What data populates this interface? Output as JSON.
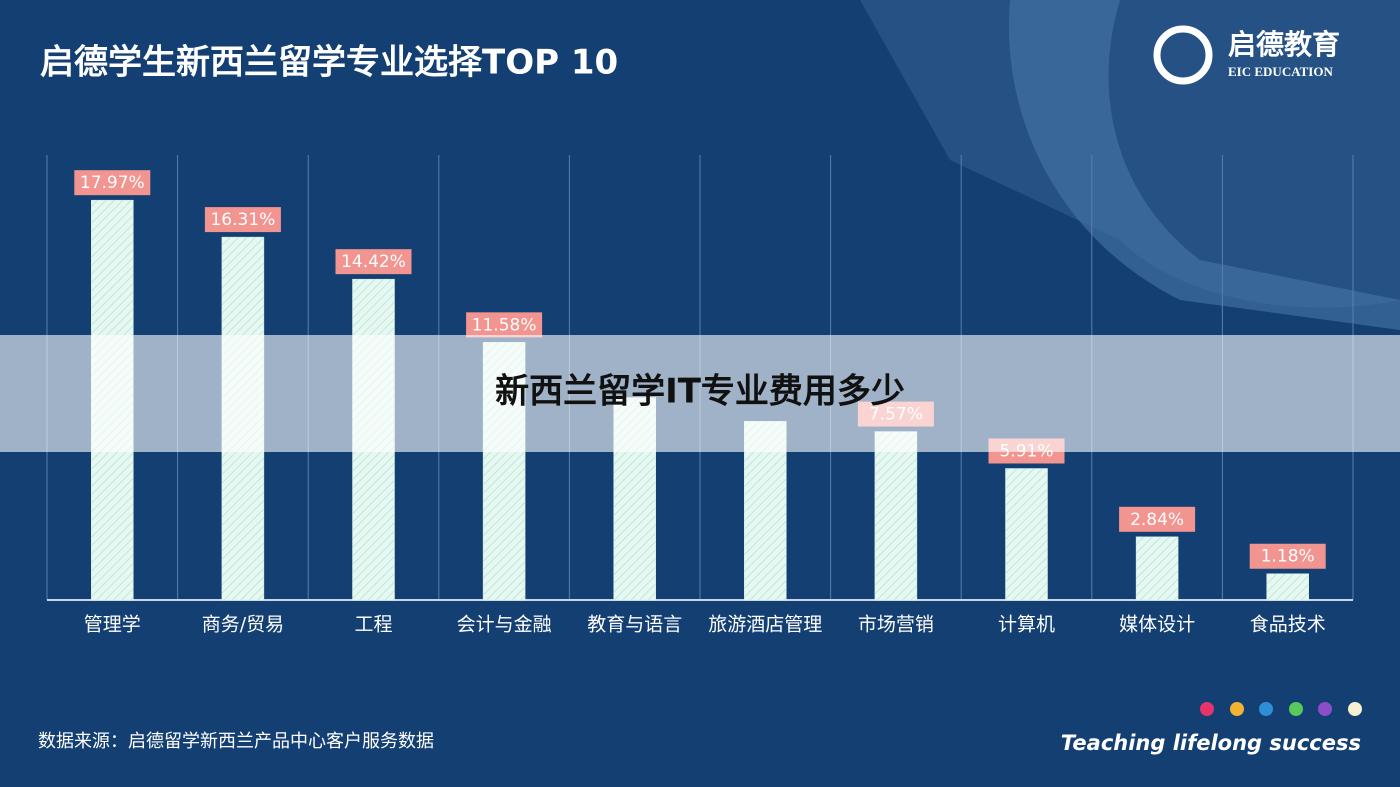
{
  "chart_data": {
    "type": "bar",
    "title": "启德学生新西兰留学专业选择TOP 10",
    "categories": [
      "管理学",
      "商务/贸易",
      "工程",
      "会计与金融",
      "教育与语言",
      "旅游酒店管理",
      "市场营销",
      "计算机",
      "媒体设计",
      "食品技术"
    ],
    "values": [
      17.97,
      16.31,
      14.42,
      11.58,
      9.1,
      8.03,
      7.57,
      5.91,
      2.84,
      1.18
    ],
    "value_labels": [
      "17.97%",
      "16.31%",
      "14.42%",
      "11.58%",
      null,
      null,
      "7.57%",
      "5.91%",
      "2.84%",
      "1.18%"
    ],
    "color": "#d9f5ea",
    "label_color": "#f2948f",
    "ylim": [
      0,
      20
    ]
  },
  "logo": {
    "name": "启德教育",
    "subtitle": "EIC EDUCATION"
  },
  "source": "数据来源：启德留学新西兰产品中心客户服务数据",
  "slogan": "Teaching lifelong success",
  "banner": "新西兰留学IT专业费用多少"
}
